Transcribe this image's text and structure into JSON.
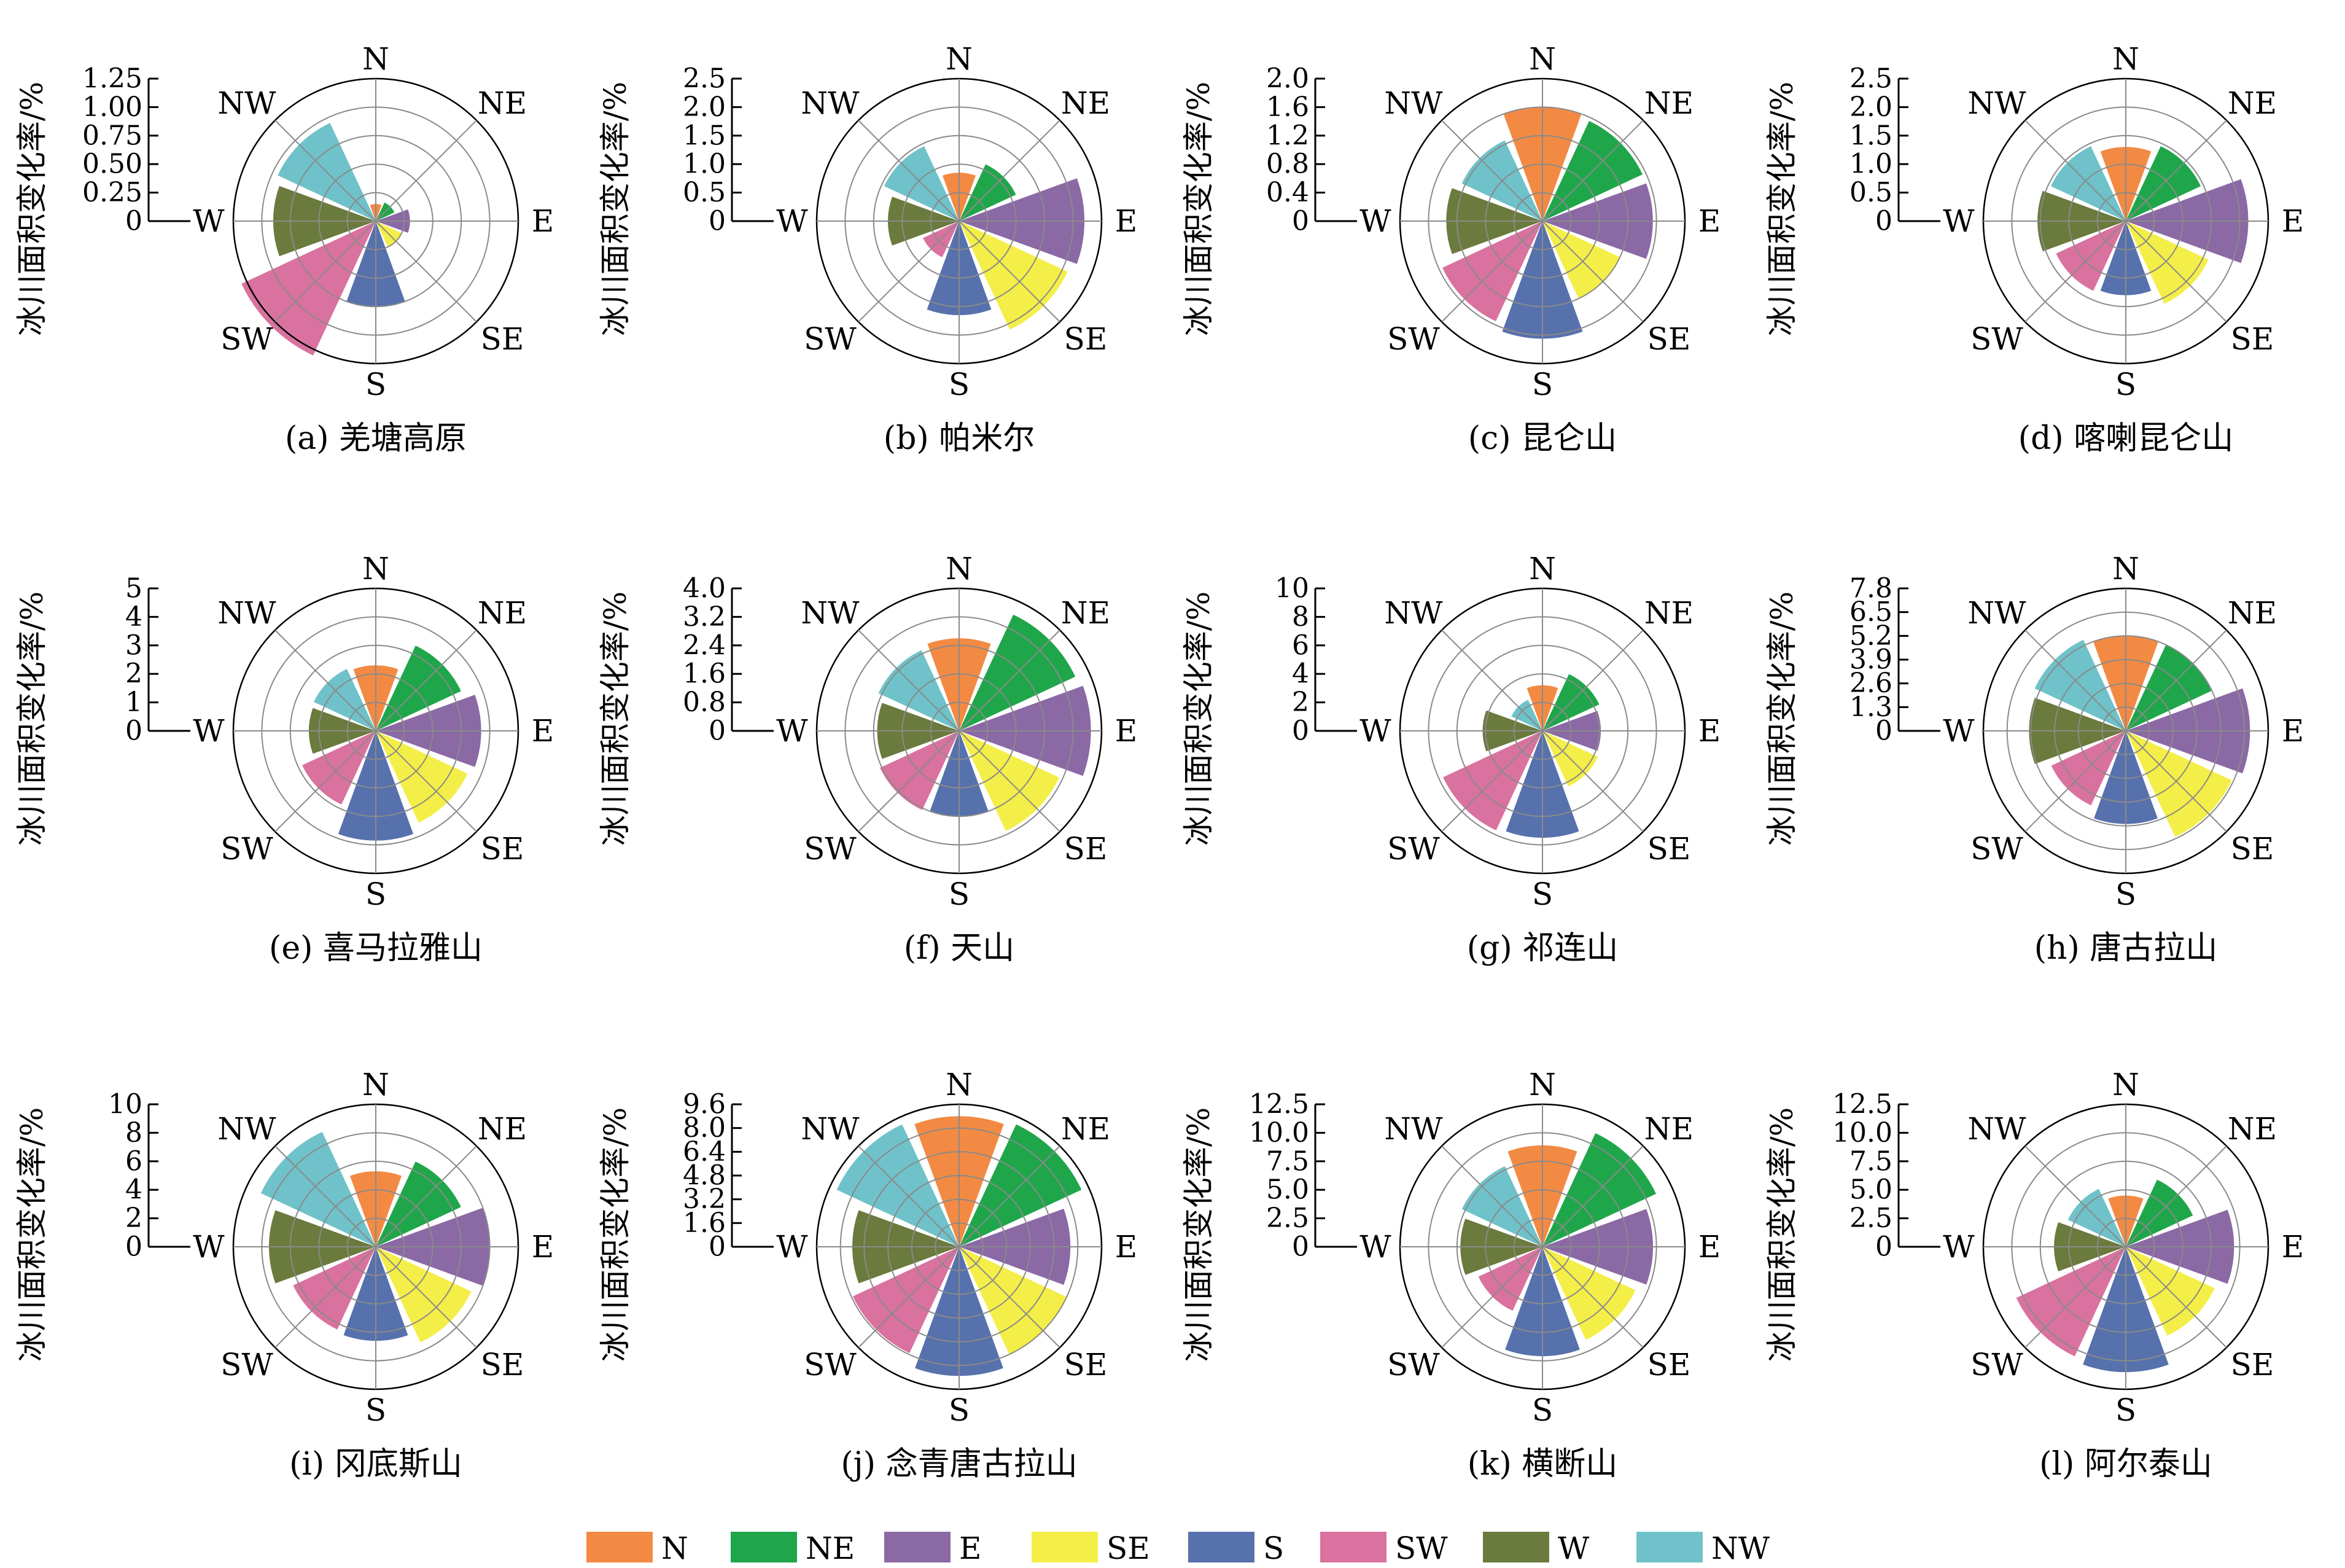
{
  "y_axis_label": "冰川面积变化率/%",
  "directions": [
    "N",
    "NE",
    "E",
    "SE",
    "S",
    "SW",
    "W",
    "NW"
  ],
  "colors": {
    "N": "#f28a44",
    "NE": "#1fa64a",
    "E": "#8b69a5",
    "SE": "#f4ee48",
    "S": "#5771ad",
    "SW": "#d9729f",
    "W": "#6b7a3d",
    "NW": "#6fc2c9"
  },
  "legend": [
    "N",
    "NE",
    "E",
    "SE",
    "S",
    "SW",
    "W",
    "NW"
  ],
  "chart_data": [
    {
      "type": "polar-bar",
      "title": "(a) 羌塘高原",
      "ticks": [
        "0",
        "0.25",
        "0.50",
        "0.75",
        "1.00",
        "1.25"
      ],
      "rmax": 1.25,
      "values": [
        0.15,
        0.18,
        0.3,
        0.25,
        0.75,
        1.3,
        0.9,
        0.95
      ]
    },
    {
      "type": "polar-bar",
      "title": "(b) 帕米尔",
      "ticks": [
        "0",
        "0.5",
        "1.0",
        "1.5",
        "2.0",
        "2.5"
      ],
      "rmax": 2.5,
      "values": [
        0.85,
        1.1,
        2.2,
        2.1,
        1.65,
        0.7,
        1.25,
        1.45
      ]
    },
    {
      "type": "polar-bar",
      "title": "(c) 昆仑山",
      "ticks": [
        "0",
        "0.4",
        "0.8",
        "1.2",
        "1.6",
        "2.0"
      ],
      "rmax": 2.0,
      "values": [
        1.6,
        1.55,
        1.55,
        1.2,
        1.65,
        1.55,
        1.35,
        1.25
      ]
    },
    {
      "type": "polar-bar",
      "title": "(d) 喀喇昆仑山",
      "ticks": [
        "0",
        "0.5",
        "1.0",
        "1.5",
        "2.0",
        "2.5"
      ],
      "rmax": 2.5,
      "values": [
        1.3,
        1.45,
        2.15,
        1.6,
        1.3,
        1.35,
        1.55,
        1.45
      ]
    },
    {
      "type": "polar-bar",
      "title": "(e) 喜马拉雅山",
      "ticks": [
        "0",
        "1",
        "2",
        "3",
        "4",
        "5"
      ],
      "rmax": 5,
      "values": [
        2.3,
        3.3,
        3.7,
        3.55,
        3.85,
        2.85,
        2.35,
        2.4
      ]
    },
    {
      "type": "polar-bar",
      "title": "(f) 天山",
      "ticks": [
        "0",
        "0.8",
        "1.6",
        "2.4",
        "3.2",
        "4.0"
      ],
      "rmax": 4.0,
      "values": [
        2.6,
        3.6,
        3.7,
        3.1,
        2.4,
        2.45,
        2.3,
        2.5
      ]
    },
    {
      "type": "polar-bar",
      "title": "(g) 祁连山",
      "ticks": [
        "0",
        "2",
        "4",
        "6",
        "8",
        "10"
      ],
      "rmax": 10,
      "values": [
        3.2,
        4.4,
        4.1,
        4.3,
        7.5,
        7.7,
        4.2,
        2.4
      ]
    },
    {
      "type": "polar-bar",
      "title": "(h) 唐古拉山",
      "ticks": [
        "0",
        "1.3",
        "2.6",
        "3.9",
        "5.2",
        "6.5",
        "7.8"
      ],
      "rmax": 7.8,
      "values": [
        5.2,
        5.2,
        6.8,
        6.4,
        5.1,
        4.5,
        5.3,
        5.5
      ]
    },
    {
      "type": "polar-bar",
      "title": "(i) 冈底斯山",
      "ticks": [
        "0",
        "2",
        "4",
        "6",
        "8",
        "10"
      ],
      "rmax": 10,
      "values": [
        5.3,
        6.6,
        8.0,
        7.4,
        6.6,
        6.4,
        7.5,
        8.9
      ]
    },
    {
      "type": "polar-bar",
      "title": "(j) 念青唐古拉山",
      "ticks": [
        "0",
        "1.6",
        "3.2",
        "4.8",
        "6.4",
        "8.0",
        "9.6"
      ],
      "rmax": 9.6,
      "values": [
        8.8,
        9.1,
        7.5,
        8.0,
        8.7,
        7.9,
        7.2,
        9.1
      ]
    },
    {
      "type": "polar-bar",
      "title": "(k) 横断山",
      "ticks": [
        "0",
        "2.5",
        "5.0",
        "7.5",
        "10.0",
        "12.5"
      ],
      "rmax": 12.5,
      "values": [
        8.9,
        11.0,
        9.7,
        9.0,
        9.6,
        6.2,
        7.2,
        7.8
      ]
    },
    {
      "type": "polar-bar",
      "title": "(l) 阿尔泰山",
      "ticks": [
        "0",
        "2.5",
        "5.0",
        "7.5",
        "10.0",
        "12.5"
      ],
      "rmax": 12.5,
      "values": [
        4.5,
        6.5,
        9.5,
        8.6,
        11.0,
        10.6,
        6.3,
        5.6
      ]
    }
  ]
}
